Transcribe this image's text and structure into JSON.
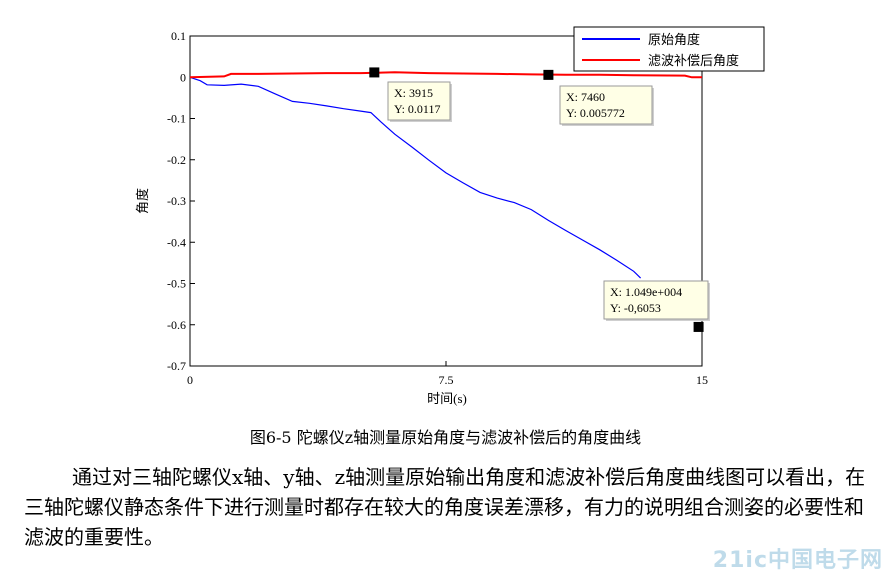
{
  "chart_data": {
    "type": "line",
    "ylabel": "角度",
    "xlabel": "时间(s)",
    "xlim": [
      0,
      15
    ],
    "ylim": [
      -0.7,
      0.1
    ],
    "xticks": [
      {
        "v": 0,
        "label": "0"
      },
      {
        "v": 7.5,
        "label": "7.5"
      },
      {
        "v": 15,
        "label": "15"
      }
    ],
    "yticks": [
      {
        "v": 0.1,
        "label": "0.1"
      },
      {
        "v": 0,
        "label": "0"
      },
      {
        "v": -0.1,
        "label": "-0.1"
      },
      {
        "v": -0.2,
        "label": "-0.2"
      },
      {
        "v": -0.3,
        "label": "-0.3"
      },
      {
        "v": -0.4,
        "label": "-0.4"
      },
      {
        "v": -0.5,
        "label": "-0.5"
      },
      {
        "v": -0.6,
        "label": "-0.6"
      },
      {
        "v": -0.7,
        "label": "-0.7"
      }
    ],
    "legend_position": "top-right",
    "series": [
      {
        "name": "原始角度",
        "color": "#0000ff",
        "x": [
          0,
          0.3,
          0.5,
          1.0,
          1.5,
          2.0,
          2.5,
          3.0,
          3.5,
          4.0,
          4.5,
          5.0,
          5.3,
          5.6,
          6.0,
          6.5,
          7.0,
          7.5,
          8.0,
          8.5,
          9.0,
          9.5,
          10.0,
          10.5,
          11.0,
          11.5,
          12.0,
          12.5,
          13.0,
          13.2
        ],
        "y": [
          0,
          -0.01,
          -0.02,
          -0.02,
          -0.015,
          -0.02,
          -0.04,
          -0.06,
          -0.065,
          -0.07,
          -0.075,
          -0.08,
          -0.085,
          -0.11,
          -0.14,
          -0.17,
          -0.2,
          -0.23,
          -0.255,
          -0.28,
          -0.295,
          -0.305,
          -0.32,
          -0.345,
          -0.37,
          -0.395,
          -0.42,
          -0.445,
          -0.47,
          -0.485
        ]
      },
      {
        "name": "滤波补偿后角度",
        "color": "#ff0000",
        "x": [
          0,
          1.0,
          1.2,
          2.0,
          3.0,
          4.0,
          5.0,
          6.0,
          7.0,
          8.0,
          9.0,
          10.0,
          11.0,
          12.0,
          13.0,
          14.5,
          14.7,
          15.0
        ],
        "y": [
          0,
          0.002,
          0.008,
          0.008,
          0.009,
          0.01,
          0.01,
          0.012,
          0.01,
          0.009,
          0.008,
          0.007,
          0.006,
          0.006,
          0.005,
          0.004,
          0.0,
          0.0
        ]
      }
    ],
    "datatips": [
      {
        "marker_x": 5.4,
        "marker_y": 0.0117,
        "lines": [
          "X: 3915",
          "Y: 0.0117"
        ],
        "box": [
          388,
          82
        ]
      },
      {
        "marker_x": 10.5,
        "marker_y": 0.005772,
        "lines": [
          "X: 7460",
          "Y: 0.005772"
        ],
        "box": [
          560,
          86
        ]
      },
      {
        "marker_x": 14.9,
        "marker_y": -0.6053,
        "lines": [
          "X: 1.049e+004",
          "Y: -0,6053"
        ],
        "box": [
          604,
          281
        ]
      }
    ]
  },
  "caption": "图6-5 陀螺仪z轴测量原始角度与滤波补偿后的角度曲线",
  "paragraph": "通过对三轴陀螺仪x轴、y轴、z轴测量原始输出角度和滤波补偿后角度曲线图可以看出，在三轴陀螺仪静态条件下进行测量时都存在较大的角度误差漂移，有力的说明组合测姿的必要性和滤波的重要性。",
  "watermark": "21ic中国电子网"
}
